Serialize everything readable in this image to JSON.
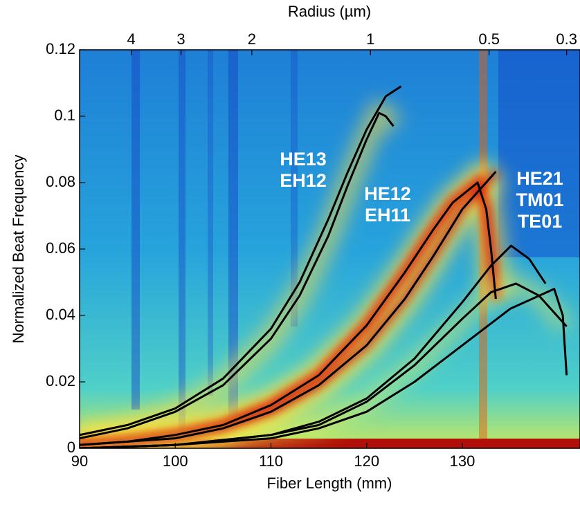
{
  "chart_data": {
    "type": "line",
    "xlabel": "Fiber Length (mm)",
    "ylabel": "Normalized Beat Frequency",
    "x2label": "Radius (µm)",
    "xlim": [
      90,
      142.3
    ],
    "xticks": [
      90,
      100,
      110,
      120,
      130
    ],
    "ylim": [
      0,
      0.12
    ],
    "yticks": [
      0,
      0.02,
      0.04,
      0.06,
      0.08,
      0.1,
      0.12
    ],
    "x2ticks": [
      {
        "value": 95.4,
        "label": "4"
      },
      {
        "value": 100.6,
        "label": "3"
      },
      {
        "value": 108.0,
        "label": "2"
      },
      {
        "value": 120.4,
        "label": "1"
      },
      {
        "value": 132.8,
        "label": "0.5"
      },
      {
        "value": 140.9,
        "label": "0.3"
      }
    ],
    "annotations": [
      {
        "lines": [
          "HE13",
          "EH12"
        ]
      },
      {
        "lines": [
          "HE12",
          "EH11"
        ]
      },
      {
        "lines": [
          "HE21",
          "TM01",
          "TE01"
        ]
      }
    ],
    "series": [
      {
        "color": "#000000",
        "x": [
          90,
          95,
          100,
          105,
          110,
          113,
          116,
          118,
          120,
          121.3,
          122,
          122.8
        ],
        "values": [
          0.003,
          0.006,
          0.011,
          0.019,
          0.033,
          0.046,
          0.064,
          0.079,
          0.093,
          0.101,
          0.1,
          0.097
        ]
      },
      {
        "color": "#000000",
        "x": [
          90,
          95,
          100,
          105,
          110,
          113,
          116,
          118,
          120,
          122,
          123.6
        ],
        "values": [
          0.004,
          0.007,
          0.012,
          0.021,
          0.036,
          0.05,
          0.069,
          0.083,
          0.096,
          0.106,
          0.109
        ]
      },
      {
        "color": "#000000",
        "x": [
          90,
          95,
          100,
          105,
          110,
          115,
          120,
          124,
          127,
          129,
          131.6,
          132.5,
          133,
          133.5
        ],
        "values": [
          0.001,
          0.002,
          0.004,
          0.007,
          0.013,
          0.022,
          0.037,
          0.053,
          0.066,
          0.074,
          0.08,
          0.072,
          0.06,
          0.045
        ]
      },
      {
        "color": "#000000",
        "x": [
          90,
          95,
          100,
          105,
          110,
          115,
          120,
          124,
          127,
          130,
          133.5
        ],
        "values": [
          0.001,
          0.002,
          0.003,
          0.006,
          0.011,
          0.019,
          0.031,
          0.045,
          0.058,
          0.072,
          0.0833
        ]
      },
      {
        "color": "#000000",
        "x": [
          90,
          100,
          110,
          115,
          120,
          125,
          130,
          133,
          135.1,
          137,
          138.7
        ],
        "values": [
          0,
          0.001,
          0.004,
          0.008,
          0.015,
          0.027,
          0.044,
          0.055,
          0.061,
          0.057,
          0.0496
        ]
      },
      {
        "color": "#000000",
        "x": [
          90,
          100,
          110,
          115,
          120,
          125,
          130,
          133,
          135.6,
          138,
          140.9
        ],
        "values": [
          0,
          0.001,
          0.004,
          0.007,
          0.014,
          0.025,
          0.039,
          0.047,
          0.0496,
          0.046,
          0.0367
        ]
      },
      {
        "color": "#000000",
        "x": [
          90,
          100,
          110,
          115,
          120,
          125,
          130,
          135,
          139.6,
          140.5,
          140.9
        ],
        "values": [
          0,
          0.001,
          0.003,
          0.006,
          0.011,
          0.02,
          0.031,
          0.042,
          0.048,
          0.04,
          0.022
        ]
      }
    ]
  }
}
